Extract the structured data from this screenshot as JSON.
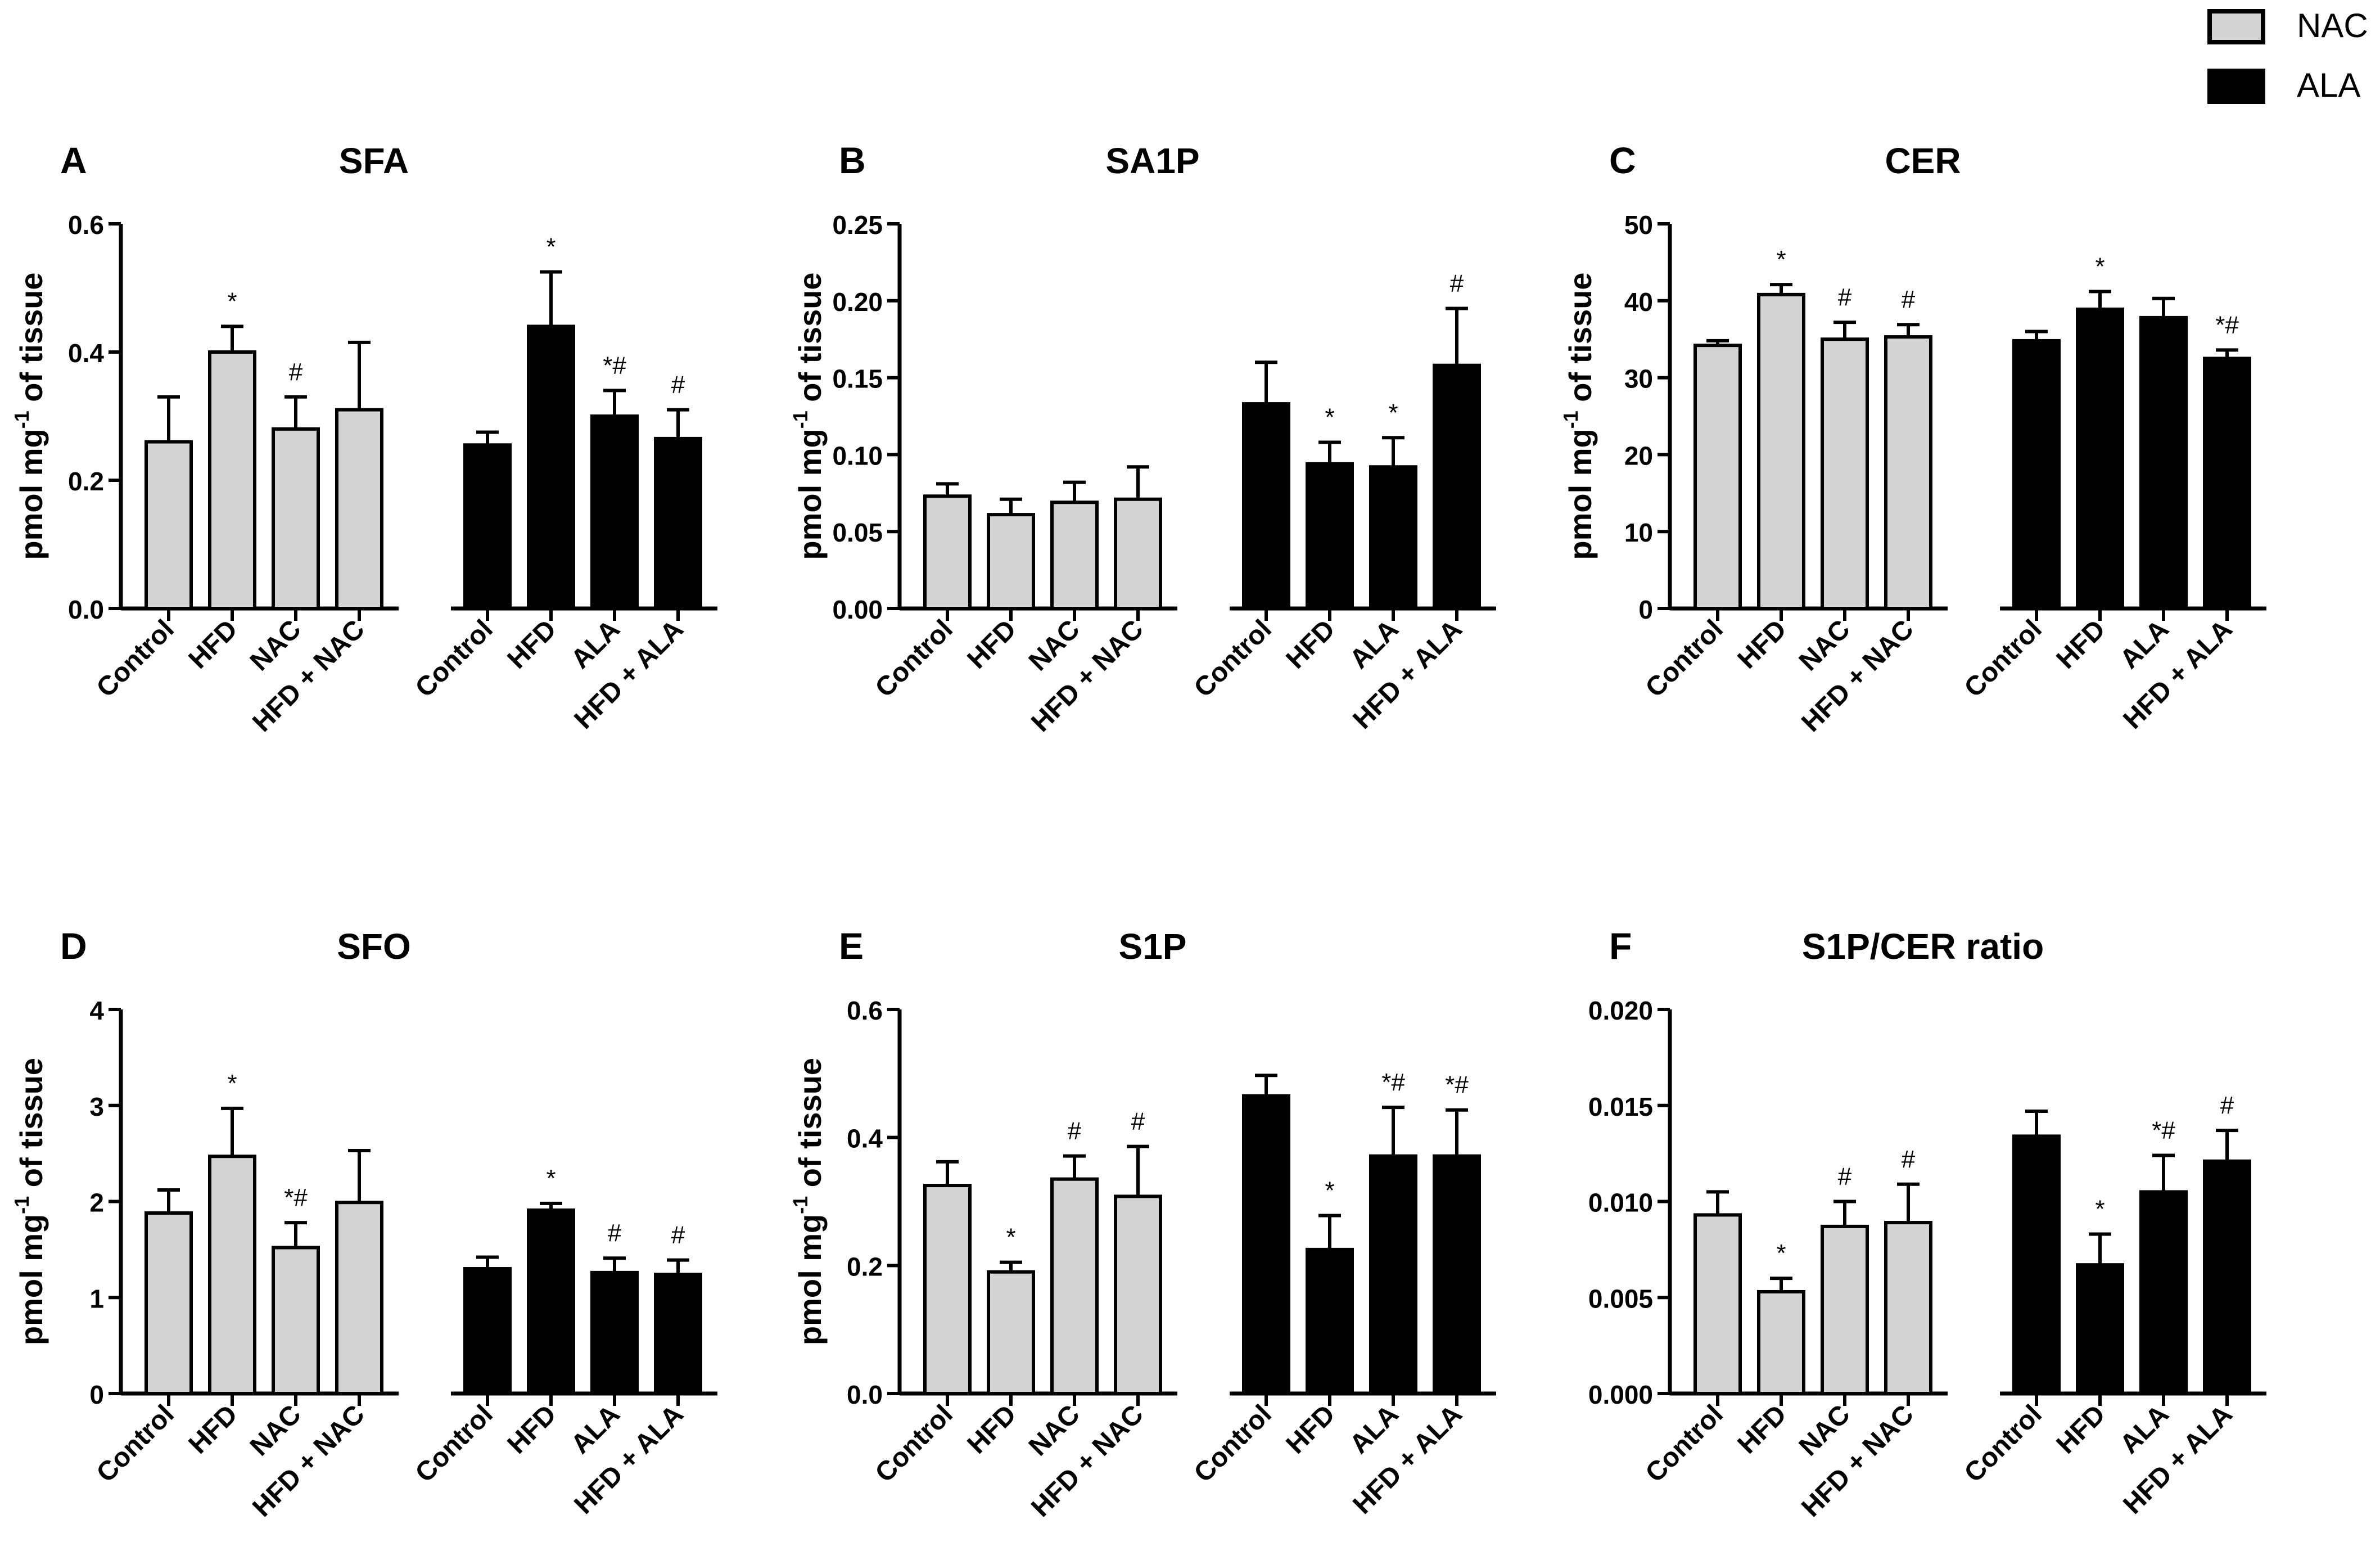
{
  "legend": [
    {
      "label": "NAC",
      "color": "#d3d3d3"
    },
    {
      "label": "ALA",
      "color": "#000000"
    }
  ],
  "colors": {
    "nac_bar": "#d3d3d3",
    "ala_bar": "#000000",
    "axis": "#000000"
  },
  "chart_data": [
    {
      "type": "bar",
      "panel": "A",
      "title": "SFA",
      "ylabel": "pmol mg-1 of tissue",
      "ylim": [
        0,
        0.6
      ],
      "yticks": [
        "0.0",
        "0.2",
        "0.4",
        "0.6"
      ],
      "groups": [
        {
          "name": "NAC",
          "categories": [
            "Control",
            "HFD",
            "NAC",
            "HFD + NAC"
          ],
          "values": [
            0.26,
            0.4,
            0.28,
            0.31
          ],
          "errors": [
            0.07,
            0.04,
            0.05,
            0.105
          ],
          "annotations": [
            "",
            "*",
            "#",
            ""
          ]
        },
        {
          "name": "ALA",
          "categories": [
            "Control",
            "HFD",
            "ALA",
            "HFD + ALA"
          ],
          "values": [
            0.255,
            0.44,
            0.3,
            0.265
          ],
          "errors": [
            0.02,
            0.085,
            0.04,
            0.045
          ],
          "annotations": [
            "",
            "*",
            "*#",
            "#"
          ]
        }
      ]
    },
    {
      "type": "bar",
      "panel": "B",
      "title": "SA1P",
      "ylabel": "pmol mg-1 of tissue",
      "ylim": [
        0,
        0.25
      ],
      "yticks": [
        "0.00",
        "0.05",
        "0.10",
        "0.15",
        "0.20",
        "0.25"
      ],
      "groups": [
        {
          "name": "NAC",
          "categories": [
            "Control",
            "HFD",
            "NAC",
            "HFD + NAC"
          ],
          "values": [
            0.073,
            0.061,
            0.069,
            0.071
          ],
          "errors": [
            0.008,
            0.01,
            0.013,
            0.021
          ],
          "annotations": [
            "",
            "",
            "",
            ""
          ]
        },
        {
          "name": "ALA",
          "categories": [
            "Control",
            "HFD",
            "ALA",
            "HFD + ALA"
          ],
          "values": [
            0.133,
            0.094,
            0.092,
            0.158
          ],
          "errors": [
            0.027,
            0.014,
            0.019,
            0.037
          ],
          "annotations": [
            "",
            "*",
            "*",
            "#"
          ]
        }
      ]
    },
    {
      "type": "bar",
      "panel": "C",
      "title": "CER",
      "ylabel": "pmol mg-1 of tissue",
      "ylim": [
        0,
        50
      ],
      "yticks": [
        "0",
        "10",
        "20",
        "30",
        "40",
        "50"
      ],
      "groups": [
        {
          "name": "NAC",
          "categories": [
            "Control",
            "HFD",
            "NAC",
            "HFD + NAC"
          ],
          "values": [
            34.2,
            40.8,
            35.0,
            35.3
          ],
          "errors": [
            0.6,
            1.3,
            2.2,
            1.6
          ],
          "annotations": [
            "",
            "*",
            "#",
            "#"
          ]
        },
        {
          "name": "ALA",
          "categories": [
            "Control",
            "HFD",
            "ALA",
            "HFD + ALA"
          ],
          "values": [
            34.8,
            38.9,
            37.8,
            32.5
          ],
          "errors": [
            1.2,
            2.3,
            2.5,
            1.1
          ],
          "annotations": [
            "",
            "*",
            "",
            "*#"
          ]
        }
      ]
    },
    {
      "type": "bar",
      "panel": "D",
      "title": "SFO",
      "ylabel": "pmol mg-1 of tissue",
      "ylim": [
        0,
        4
      ],
      "yticks": [
        "0",
        "1",
        "2",
        "3",
        "4"
      ],
      "groups": [
        {
          "name": "NAC",
          "categories": [
            "Control",
            "HFD",
            "NAC",
            "HFD + NAC"
          ],
          "values": [
            1.88,
            2.47,
            1.52,
            1.99
          ],
          "errors": [
            0.24,
            0.5,
            0.26,
            0.54
          ],
          "annotations": [
            "",
            "*",
            "*#",
            ""
          ]
        },
        {
          "name": "ALA",
          "categories": [
            "Control",
            "HFD",
            "ALA",
            "HFD + ALA"
          ],
          "values": [
            1.3,
            1.91,
            1.26,
            1.24
          ],
          "errors": [
            0.12,
            0.07,
            0.15,
            0.15
          ],
          "annotations": [
            "",
            "*",
            "#",
            "#"
          ]
        }
      ]
    },
    {
      "type": "bar",
      "panel": "E",
      "title": "S1P",
      "ylabel": "pmol mg-1 of tissue",
      "ylim": [
        0,
        0.6
      ],
      "yticks": [
        "0.0",
        "0.2",
        "0.4",
        "0.6"
      ],
      "groups": [
        {
          "name": "NAC",
          "categories": [
            "Control",
            "HFD",
            "NAC",
            "HFD + NAC"
          ],
          "values": [
            0.325,
            0.19,
            0.335,
            0.308
          ],
          "errors": [
            0.037,
            0.015,
            0.036,
            0.078
          ],
          "annotations": [
            "",
            "*",
            "#",
            "#"
          ]
        },
        {
          "name": "ALA",
          "categories": [
            "Control",
            "HFD",
            "ALA",
            "HFD + ALA"
          ],
          "values": [
            0.465,
            0.225,
            0.371,
            0.371
          ],
          "errors": [
            0.032,
            0.053,
            0.076,
            0.072
          ],
          "annotations": [
            "",
            "*",
            "*#",
            "*#"
          ]
        }
      ]
    },
    {
      "type": "bar",
      "panel": "F",
      "title": "S1P/CER ratio",
      "ylabel": "",
      "ylim": [
        0,
        0.02
      ],
      "yticks": [
        "0.000",
        "0.005",
        "0.010",
        "0.015",
        "0.020"
      ],
      "groups": [
        {
          "name": "NAC",
          "categories": [
            "Control",
            "HFD",
            "NAC",
            "HFD + NAC"
          ],
          "values": [
            0.0093,
            0.0053,
            0.0087,
            0.0089
          ],
          "errors": [
            0.0012,
            0.0007,
            0.0013,
            0.002
          ],
          "annotations": [
            "",
            "*",
            "#",
            "#"
          ]
        },
        {
          "name": "ALA",
          "categories": [
            "Control",
            "HFD",
            "ALA",
            "HFD + ALA"
          ],
          "values": [
            0.0134,
            0.0067,
            0.0105,
            0.0121
          ],
          "errors": [
            0.0013,
            0.0016,
            0.0019,
            0.0016
          ],
          "annotations": [
            "",
            "*",
            "*#",
            "#"
          ]
        }
      ]
    }
  ]
}
